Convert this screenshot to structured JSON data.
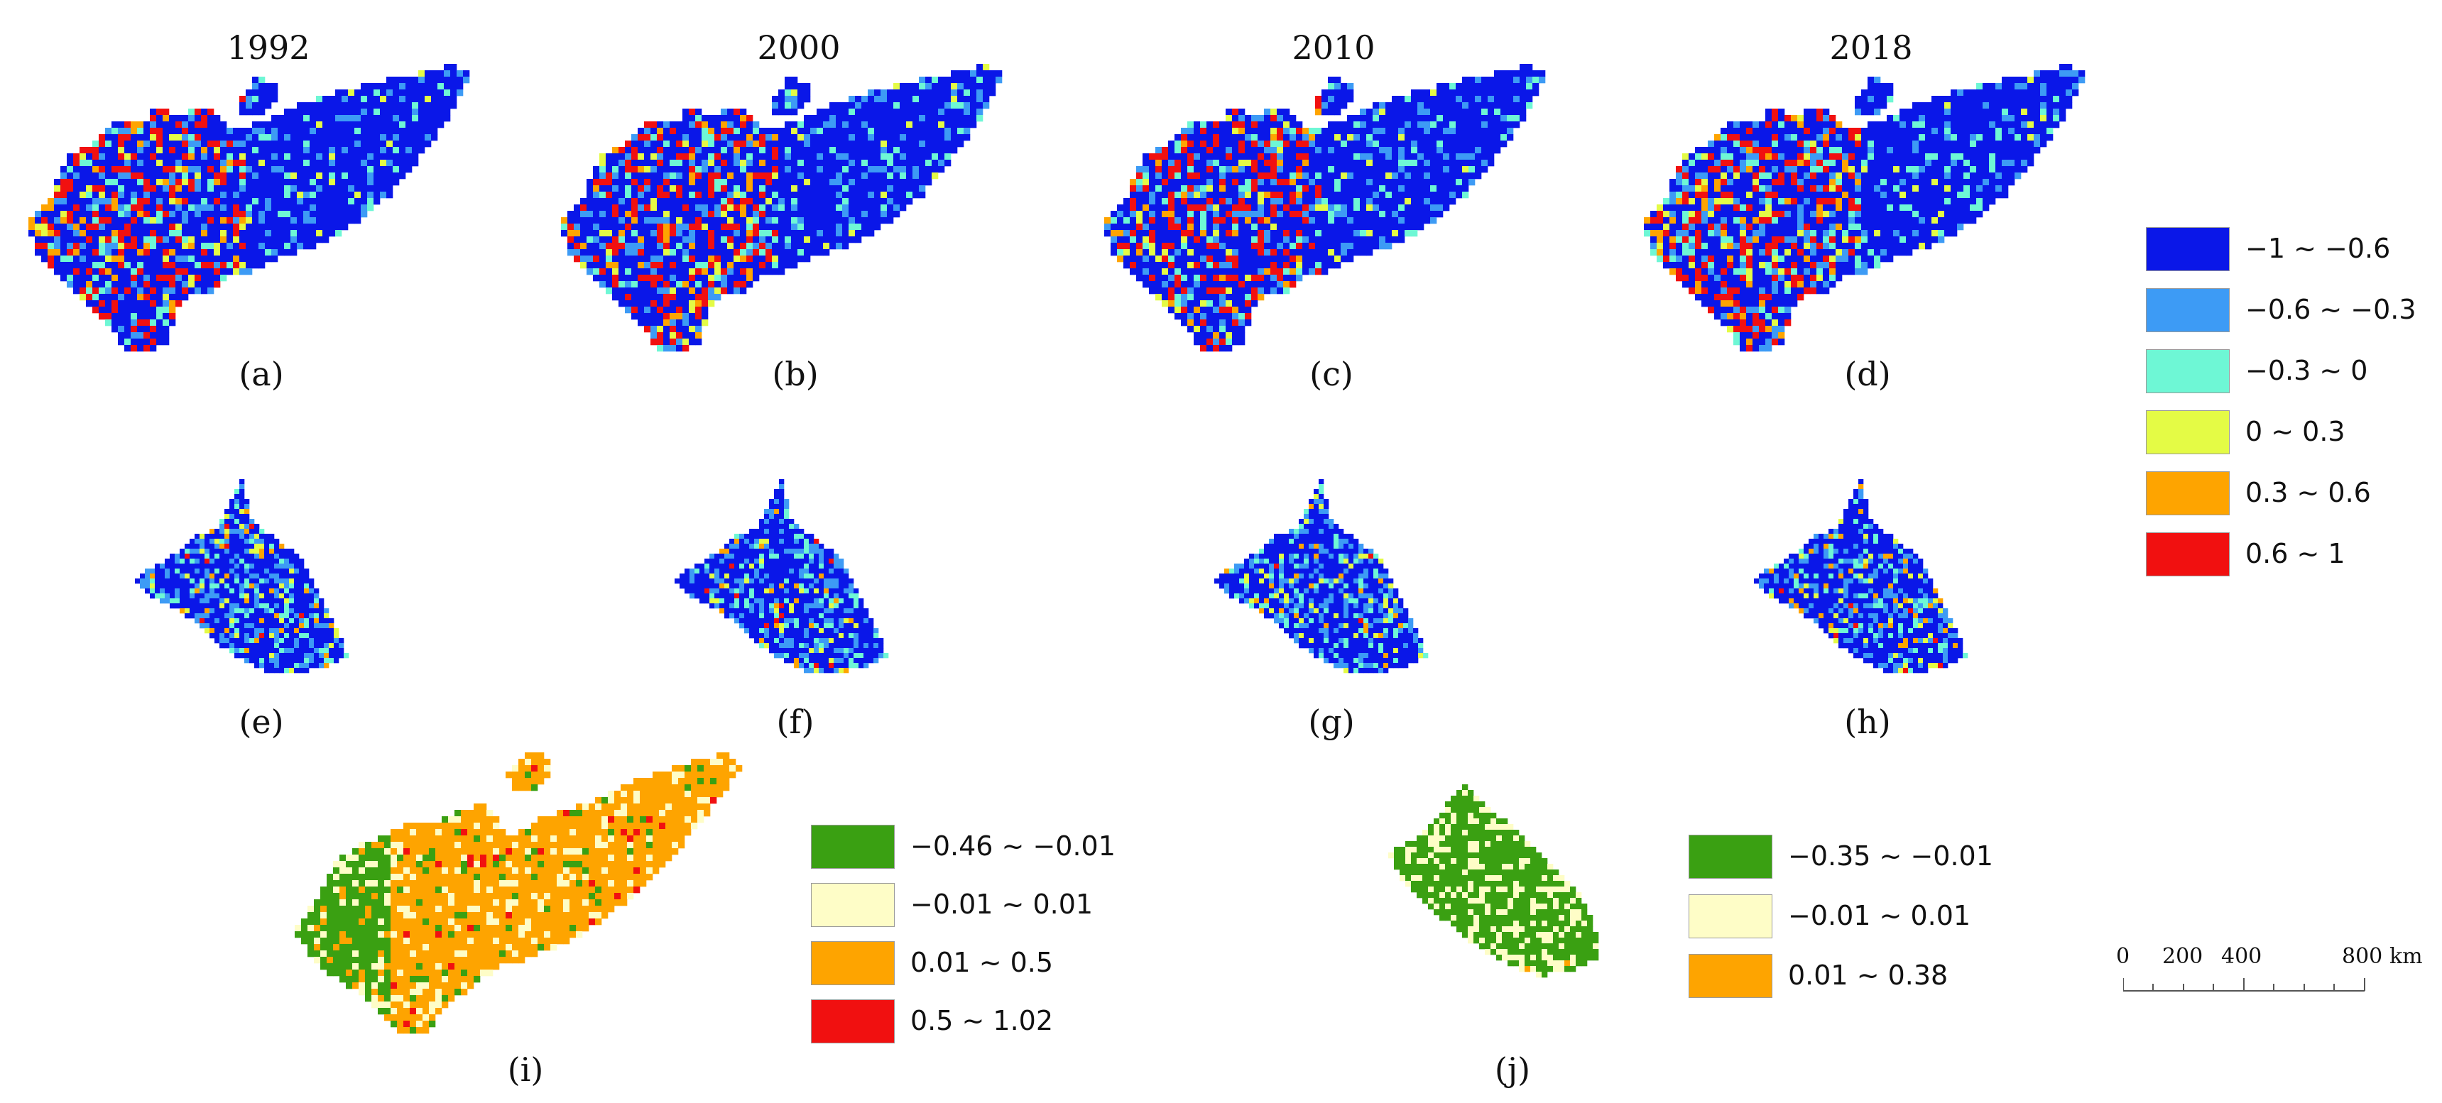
{
  "years": [
    "1992",
    "2000",
    "2010",
    "2018"
  ],
  "panel_labels": [
    "(a)",
    "(b)",
    "(c)",
    "(d)",
    "(e)",
    "(f)",
    "(g)",
    "(h)",
    "(i)",
    "(j)"
  ],
  "legend_main": [
    {
      "label": "−1 ~ −0.6",
      "color": "#0a17e8"
    },
    {
      "label": "−0.6 ~ −0.3",
      "color": "#3d9bf5"
    },
    {
      "label": "−0.3 ~ 0",
      "color": "#6ef7d5"
    },
    {
      "label": "0 ~ 0.3",
      "color": "#e4fb45"
    },
    {
      "label": "0.3 ~ 0.6",
      "color": "#fea400"
    },
    {
      "label": "0.6 ~ 1",
      "color": "#f11010"
    }
  ],
  "legend_i": [
    {
      "label": "−0.46 ~ −0.01",
      "color": "#3aa012"
    },
    {
      "label": "−0.01 ~ 0.01",
      "color": "#fefdc7"
    },
    {
      "label": "0.01 ~ 0.5",
      "color": "#fea400"
    },
    {
      "label": "0.5 ~ 1.02",
      "color": "#f11010"
    }
  ],
  "legend_j": [
    {
      "label": "−0.35 ~ −0.01",
      "color": "#3aa012"
    },
    {
      "label": "−0.01 ~ 0.01",
      "color": "#fefdc7"
    },
    {
      "label": "0.01 ~ 0.38",
      "color": "#fea400"
    }
  ],
  "scale_bar": {
    "ticks": [
      "0",
      "200",
      "400",
      "800"
    ],
    "unit": "km"
  }
}
